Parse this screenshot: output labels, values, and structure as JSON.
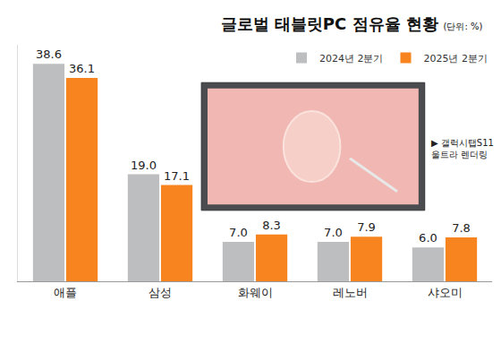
{
  "chart_data": {
    "type": "bar",
    "title": "글로벌 태블릿PC 점유율 현황",
    "subtitle": "(단위: %)",
    "categories": [
      "애플",
      "삼성",
      "화웨이",
      "레노버",
      "샤오미"
    ],
    "series": [
      {
        "name": "2024년 2분기",
        "color": "#bcbec0",
        "values": [
          38.6,
          19.0,
          7.0,
          7.0,
          6.0
        ],
        "value_labels": [
          "38.6",
          "19.0",
          "7.0",
          "7.0",
          "6.0"
        ]
      },
      {
        "name": "2025년 2분기",
        "color": "#f7841f",
        "values": [
          36.1,
          17.1,
          8.3,
          7.9,
          7.8
        ],
        "value_labels": [
          "36.1",
          "17.1",
          "8.3",
          "7.9",
          "7.8"
        ]
      }
    ],
    "ylim": [
      0,
      42
    ],
    "yticks": [],
    "grid": false,
    "legend": "top right",
    "data_labels": true,
    "tick_labels": "x",
    "annotation": [
      "▶ 갤럭시탭S11",
      "울트라 렌더링"
    ]
  }
}
